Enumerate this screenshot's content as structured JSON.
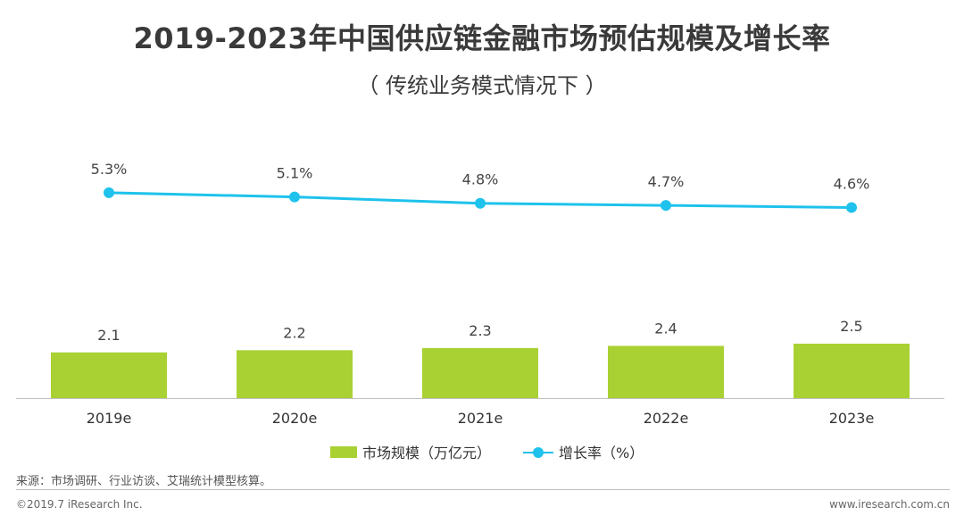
{
  "chart_data": {
    "type": "bar",
    "title": "2019-2023年中国供应链金融市场预估规模及增长率",
    "subtitle": "（ 传统业务模式情况下 ）",
    "categories": [
      "2019e",
      "2020e",
      "2021e",
      "2022e",
      "2023e"
    ],
    "series": [
      {
        "name": "市场规模（万亿元）",
        "type": "bar",
        "color": "#a9d133",
        "values": [
          2.1,
          2.2,
          2.3,
          2.4,
          2.5
        ],
        "labels": [
          "2.1",
          "2.2",
          "2.3",
          "2.4",
          "2.5"
        ]
      },
      {
        "name": "增长率（%）",
        "type": "line",
        "color": "#1ec2ec",
        "values": [
          5.3,
          5.1,
          4.8,
          4.7,
          4.6
        ],
        "labels": [
          "5.3%",
          "5.1%",
          "4.8%",
          "4.7%",
          "4.6%"
        ]
      }
    ],
    "legend_position": "bottom",
    "grid": false
  },
  "footer": {
    "source": "来源：市场调研、行业访谈、艾瑞统计模型核算。",
    "copyright": "©2019.7 iResearch Inc.",
    "website": "www.iresearch.com.cn"
  }
}
